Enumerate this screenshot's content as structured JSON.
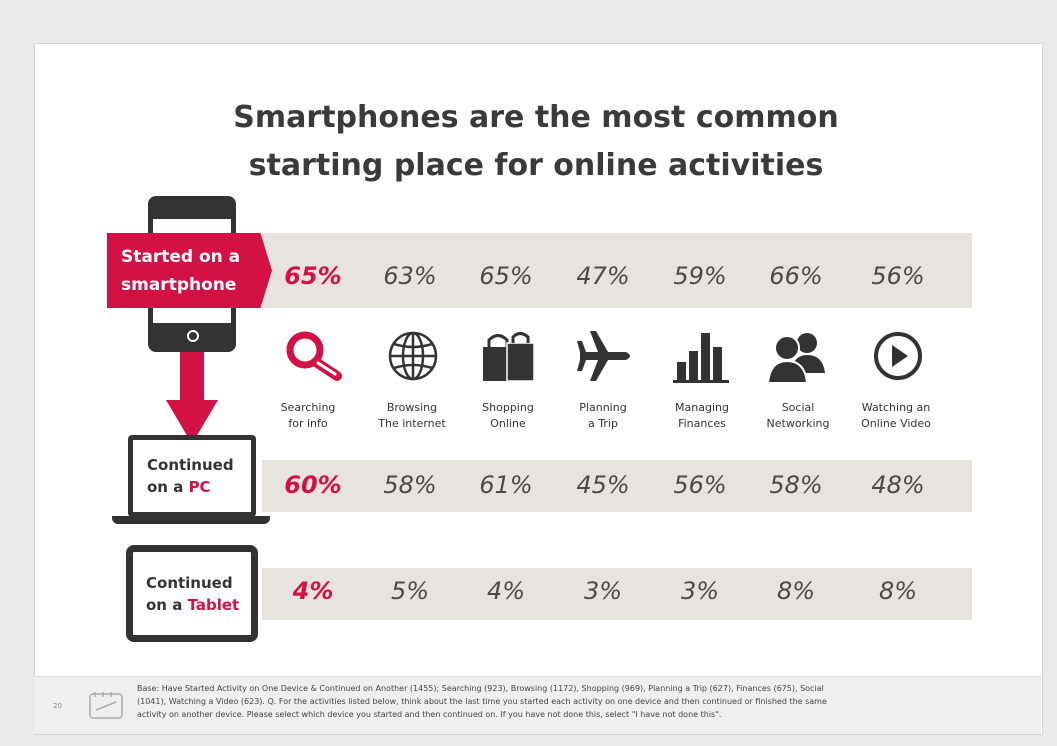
{
  "title_line1": "Smartphones are the most common",
  "title_line2": "starting place for online activities",
  "devices": {
    "smartphone": {
      "line1": "Started on a",
      "line2": "smartphone"
    },
    "pc": {
      "line1": "Continued",
      "line2_prefix": "on a ",
      "line2_accent": "PC"
    },
    "tablet": {
      "line1": "Continued",
      "line2_prefix": "on a ",
      "line2_accent": "Tablet"
    }
  },
  "activities": [
    {
      "icon": "magnifier-icon",
      "line1": "Searching",
      "line2": "for info"
    },
    {
      "icon": "globe-icon",
      "line1": "Browsing",
      "line2": "The internet"
    },
    {
      "icon": "shopping-bag-icon",
      "line1": "Shopping",
      "line2": "Online"
    },
    {
      "icon": "airplane-icon",
      "line1": "Planning",
      "line2": "a Trip"
    },
    {
      "icon": "bar-chart-icon",
      "line1": "Managing",
      "line2": "Finances"
    },
    {
      "icon": "people-icon",
      "line1": "Social",
      "line2": "Networking"
    },
    {
      "icon": "play-button-icon",
      "line1": "Watching an",
      "line2": "Online Video"
    }
  ],
  "rows": {
    "smartphone": [
      "65%",
      "63%",
      "65%",
      "47%",
      "59%",
      "66%",
      "56%"
    ],
    "pc": [
      "60%",
      "58%",
      "61%",
      "45%",
      "56%",
      "58%",
      "48%"
    ],
    "tablet": [
      "4%",
      "5%",
      "4%",
      "3%",
      "3%",
      "8%",
      "8%"
    ]
  },
  "colors": {
    "accent": "#d31145",
    "band": "#e7e4df",
    "text": "#3a3a3a"
  },
  "footer": {
    "page_number": "20",
    "note_line1": "Base: Have Started Activity on One Device & Continued on Another (1455); Searching (923), Browsing (1172), Shopping (969), Planning a Trip (627), Finances (675), Social",
    "note_line2": "(1041), Watching a Video (623). Q. For the activities listed below, think about the last time you started each activity on one device and then continued or finished the same",
    "note_line3": "activity on another device.  Please select which device you started and then continued on.  If you have not done this, select \"I have not done this\"."
  }
}
